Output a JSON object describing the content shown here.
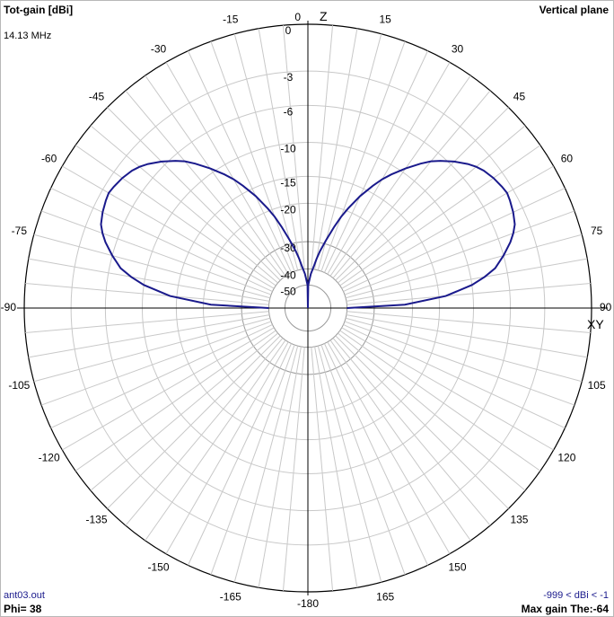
{
  "header": {
    "title": "Tot-gain [dBi]",
    "frequency": "14.13 MHz",
    "plane": "Vertical plane"
  },
  "footer": {
    "file": "ant03.out",
    "phi": "Phi= 38",
    "range": "-999 < dBi < -1",
    "max_gain": "Max gain The:-64"
  },
  "axis_labels": {
    "top": "Z",
    "right": "XY"
  },
  "colors": {
    "trace": "#1a1a8c",
    "grid": "#c8c8c8",
    "axis": "#000000"
  },
  "chart_data": {
    "type": "polar",
    "title": "Tot-gain [dBi]",
    "angle_unit": "degrees (theta, 0 = Z up)",
    "angle_ticks": [
      -180,
      -165,
      -150,
      -135,
      -120,
      -105,
      -90,
      -75,
      -60,
      -45,
      -30,
      -15,
      0,
      15,
      30,
      45,
      60,
      75,
      90,
      105,
      120,
      135,
      150,
      165
    ],
    "angle_tick_labels": [
      "-180",
      "-165",
      "-150",
      "-135",
      "-120",
      "-105",
      "-90",
      "-75",
      "-60",
      "-45",
      "-30",
      "-15",
      "0",
      "15",
      "30",
      "45",
      "60",
      "75",
      "90",
      "105",
      "120",
      "135",
      "150",
      "165"
    ],
    "radial_ticks": [
      0,
      -3,
      -6,
      -10,
      -15,
      -20,
      -30,
      -40,
      -50
    ],
    "radial_tick_labels": [
      "0",
      "-3",
      "-6",
      "-10",
      "-15",
      "-20",
      "-30",
      "-40",
      "-50"
    ],
    "grid": true,
    "series": [
      {
        "theta": [
          -90,
          -88,
          -85,
          -82,
          -80,
          -78,
          -75,
          -72,
          -70,
          -68,
          -65,
          -62,
          -60,
          -58,
          -55,
          -52,
          -50,
          -48,
          -45,
          -42,
          -40,
          -38,
          -35,
          -32,
          -30,
          -28,
          -25,
          -22,
          -20,
          -18,
          -15,
          -12,
          -10,
          -8,
          -5,
          -3,
          -1,
          0,
          1,
          3,
          5,
          8,
          10,
          12,
          15,
          18,
          20,
          22,
          25,
          28,
          30,
          32,
          35,
          38,
          40,
          42,
          45,
          48,
          50,
          52,
          55,
          58,
          60,
          62,
          65,
          68,
          70,
          72,
          75,
          78,
          80,
          82,
          85,
          88,
          90
        ],
        "gain_dbi": [
          -40,
          -22,
          -14,
          -10,
          -8.5,
          -7.2,
          -6,
          -5.1,
          -4.6,
          -4.2,
          -3.9,
          -3.7,
          -3.6,
          -3.7,
          -3.9,
          -4.2,
          -4.5,
          -4.9,
          -5.6,
          -6.5,
          -7.2,
          -8.1,
          -9.5,
          -11.2,
          -12.5,
          -14,
          -16.5,
          -19.5,
          -22,
          -25,
          -29,
          -33,
          -36,
          -39,
          -43,
          -47,
          -50,
          -52,
          -50,
          -47,
          -43,
          -39,
          -36,
          -33,
          -29,
          -25,
          -22,
          -19.5,
          -16.5,
          -14,
          -12.5,
          -11.2,
          -9.5,
          -8.1,
          -7.2,
          -6.5,
          -5.6,
          -4.9,
          -4.5,
          -4.2,
          -3.9,
          -3.7,
          -3.6,
          -3.7,
          -3.9,
          -4.2,
          -4.6,
          -5.1,
          -6,
          -7.2,
          -8.5,
          -10,
          -14,
          -22,
          -40
        ]
      }
    ]
  }
}
